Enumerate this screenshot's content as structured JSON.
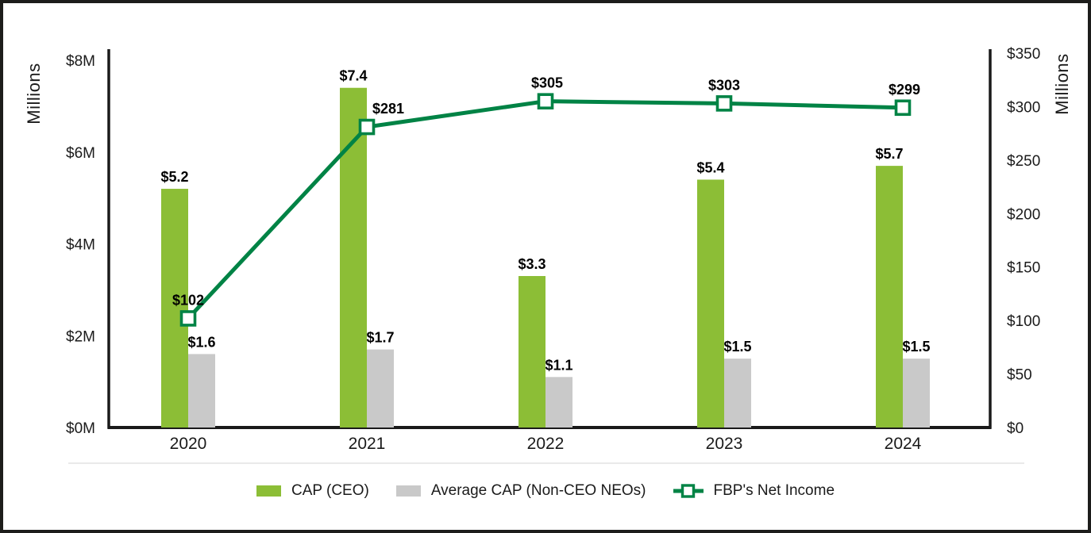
{
  "chart_data": {
    "type": "combo-bar-line",
    "title": "",
    "categories": [
      "2020",
      "2021",
      "2022",
      "2023",
      "2024"
    ],
    "series": [
      {
        "name": "CAP (CEO)",
        "type": "bar",
        "axis": "left",
        "color": "#8CBE36",
        "values": [
          5.2,
          7.4,
          3.3,
          5.4,
          5.7
        ],
        "labels": [
          "$5.2",
          "$7.4",
          "$3.3",
          "$5.4",
          "$5.7"
        ]
      },
      {
        "name": "Average CAP (Non-CEO NEOs)",
        "type": "bar",
        "axis": "left",
        "color": "#C9C9C9",
        "values": [
          1.6,
          1.7,
          1.1,
          1.5,
          1.5
        ],
        "labels": [
          "$1.6",
          "$1.7",
          "$1.1",
          "$1.5",
          "$1.5"
        ]
      },
      {
        "name": "FBP's Net Income",
        "type": "line",
        "axis": "right",
        "color": "#008345",
        "marker": "open-square",
        "values": [
          102,
          281,
          305,
          303,
          299
        ],
        "labels": [
          "$102",
          "$281",
          "$305",
          "$303",
          "$299"
        ]
      }
    ],
    "left_axis": {
      "title": "Millions",
      "min": 0,
      "max": 8,
      "ticks": [
        {
          "value": 8,
          "label": "$8M"
        },
        {
          "value": 6,
          "label": "$6M"
        },
        {
          "value": 4,
          "label": "$4M"
        },
        {
          "value": 2,
          "label": "$2M"
        },
        {
          "value": 0,
          "label": "$0M"
        }
      ]
    },
    "right_axis": {
      "title": "Millions",
      "min": 0,
      "max": 350,
      "ticks": [
        {
          "value": 350,
          "label": "$350"
        },
        {
          "value": 300,
          "label": "$300"
        },
        {
          "value": 250,
          "label": "$250"
        },
        {
          "value": 200,
          "label": "$200"
        },
        {
          "value": 150,
          "label": "$150"
        },
        {
          "value": 100,
          "label": "$100"
        },
        {
          "value": 50,
          "label": "$50"
        },
        {
          "value": 0,
          "label": "$0"
        }
      ]
    },
    "grid": false,
    "legend_position": "bottom"
  },
  "legend": {
    "items": [
      {
        "label": "CAP (CEO)",
        "color": "#8CBE36",
        "marker": "square"
      },
      {
        "label": "Average CAP (Non-CEO NEOs)",
        "color": "#C9C9C9",
        "marker": "square"
      },
      {
        "label": "FBP's Net Income",
        "color": "#008345",
        "marker": "line-open-square"
      }
    ]
  },
  "colors": {
    "bar_green": "#8CBE36",
    "bar_gray": "#C9C9C9",
    "line_green": "#008345",
    "axis_line": "#1a1a1a",
    "frame_border": "#1d1d1b",
    "separator": "#e9e9e9",
    "label_text": "#000000"
  }
}
